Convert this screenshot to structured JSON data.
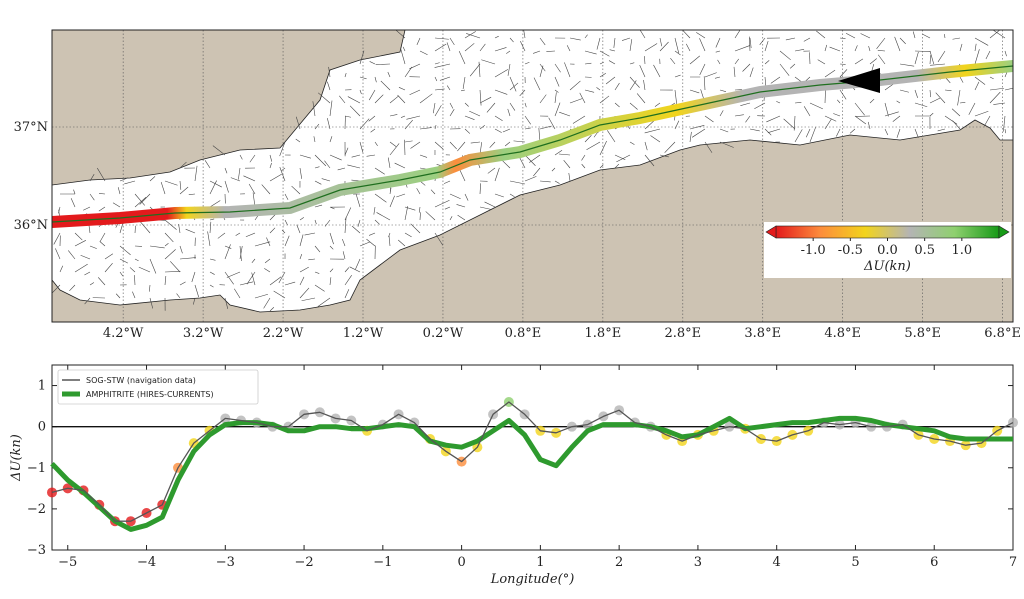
{
  "chart_data": [
    {
      "type": "map",
      "xlim": [
        -5.09,
        6.93
      ],
      "ylim": [
        35.01,
        37.99
      ],
      "xticks": [
        {
          "value": -4.2,
          "label": "4.2°W"
        },
        {
          "value": -3.2,
          "label": "3.2°W"
        },
        {
          "value": -2.2,
          "label": "2.2°W"
        },
        {
          "value": -1.2,
          "label": "1.2°W"
        },
        {
          "value": -0.2,
          "label": "0.2°W"
        },
        {
          "value": 0.8,
          "label": "0.8°E"
        },
        {
          "value": 1.8,
          "label": "1.8°E"
        },
        {
          "value": 2.8,
          "label": "2.8°E"
        },
        {
          "value": 3.8,
          "label": "3.8°E"
        },
        {
          "value": 4.8,
          "label": "4.8°E"
        },
        {
          "value": 5.8,
          "label": "5.8°E"
        },
        {
          "value": 6.8,
          "label": "6.8°E"
        }
      ],
      "yticks": [
        {
          "value": 36,
          "label": "36°N"
        },
        {
          "value": 37,
          "label": "37°N"
        }
      ],
      "grid": true,
      "colorbar": {
        "label": "ΔU(kn)",
        "lim": [
          -1.5,
          1.5
        ],
        "ticks": [
          {
            "value": -1,
            "label": "-1.0"
          },
          {
            "value": -0.5,
            "label": "-0.5"
          },
          {
            "value": 0,
            "label": "0.0"
          },
          {
            "value": 0.5,
            "label": "0.5"
          },
          {
            "value": 1,
            "label": "1.0"
          }
        ],
        "colormap": [
          "#e31a1c",
          "#fd8d3c",
          "#f2d41c",
          "#b4b4b4",
          "#8fd06f",
          "#179a17"
        ]
      }
    },
    {
      "type": "line",
      "xlabel": "Longitude(°)",
      "ylabel": "ΔU(kn)",
      "xlim": [
        -5.2,
        7
      ],
      "ylim": [
        -3,
        1.5
      ],
      "xticks": [
        {
          "value": -5,
          "label": "−5"
        },
        {
          "value": -4,
          "label": "−4"
        },
        {
          "value": -3,
          "label": "−3"
        },
        {
          "value": -2,
          "label": "−2"
        },
        {
          "value": -1,
          "label": "−1"
        },
        0,
        1,
        2,
        3,
        4,
        5,
        6,
        7
      ],
      "yticks": [
        {
          "value": -3,
          "label": "−3"
        },
        {
          "value": -2,
          "label": "−2"
        },
        {
          "value": -1,
          "label": "−1"
        },
        0,
        1
      ],
      "hline": 0,
      "x": [
        -5.2,
        -5.0,
        -4.8,
        -4.6,
        -4.4,
        -4.2,
        -4.0,
        -3.8,
        -3.6,
        -3.4,
        -3.2,
        -3.0,
        -2.8,
        -2.6,
        -2.4,
        -2.2,
        -2.0,
        -1.8,
        -1.6,
        -1.4,
        -1.2,
        -1.0,
        -0.8,
        -0.6,
        -0.4,
        -0.2,
        0.0,
        0.2,
        0.4,
        0.6,
        0.8,
        1.0,
        1.2,
        1.4,
        1.6,
        1.8,
        2.0,
        2.2,
        2.4,
        2.6,
        2.8,
        3.0,
        3.2,
        3.4,
        3.6,
        3.8,
        4.0,
        4.2,
        4.4,
        4.6,
        4.8,
        5.0,
        5.2,
        5.4,
        5.6,
        5.8,
        6.0,
        6.2,
        6.4,
        6.6,
        6.8,
        7.0
      ],
      "series": [
        {
          "name": "SOG-STW (navigation data)",
          "color": "#555555",
          "values": [
            -1.6,
            -1.5,
            -1.55,
            -1.9,
            -2.3,
            -2.3,
            -2.1,
            -1.9,
            -1.0,
            -0.4,
            -0.1,
            0.2,
            0.15,
            0.1,
            0.0,
            0.0,
            0.3,
            0.35,
            0.2,
            0.15,
            -0.1,
            0.05,
            0.3,
            0.1,
            -0.3,
            -0.6,
            -0.85,
            -0.5,
            0.3,
            0.6,
            0.3,
            -0.1,
            -0.15,
            0.0,
            0.05,
            0.25,
            0.4,
            0.1,
            0.0,
            -0.2,
            -0.35,
            -0.2,
            -0.1,
            0.0,
            -0.05,
            -0.3,
            -0.35,
            -0.2,
            -0.1,
            0.1,
            0.05,
            0.1,
            0.0,
            0.0,
            0.05,
            -0.2,
            -0.3,
            -0.35,
            -0.45,
            -0.4,
            -0.1,
            0.1
          ]
        },
        {
          "name": "AMPHITRITE (HIRES-CURRENTS)",
          "color": "#2e9a2e",
          "values": [
            -0.9,
            -1.3,
            -1.6,
            -1.95,
            -2.3,
            -2.5,
            -2.4,
            -2.2,
            -1.3,
            -0.6,
            -0.2,
            0.05,
            0.1,
            0.1,
            0.05,
            -0.1,
            -0.1,
            0.0,
            0.0,
            -0.05,
            -0.05,
            0.0,
            0.05,
            0.0,
            -0.35,
            -0.45,
            -0.5,
            -0.35,
            -0.1,
            0.15,
            -0.2,
            -0.8,
            -0.95,
            -0.5,
            -0.1,
            0.05,
            0.05,
            0.05,
            0.0,
            -0.1,
            -0.25,
            -0.2,
            0.0,
            0.2,
            -0.05,
            0.0,
            0.05,
            0.1,
            0.1,
            0.15,
            0.2,
            0.2,
            0.15,
            0.05,
            0.0,
            -0.05,
            -0.1,
            -0.25,
            -0.3,
            -0.3,
            -0.3,
            -0.3
          ]
        }
      ]
    }
  ]
}
